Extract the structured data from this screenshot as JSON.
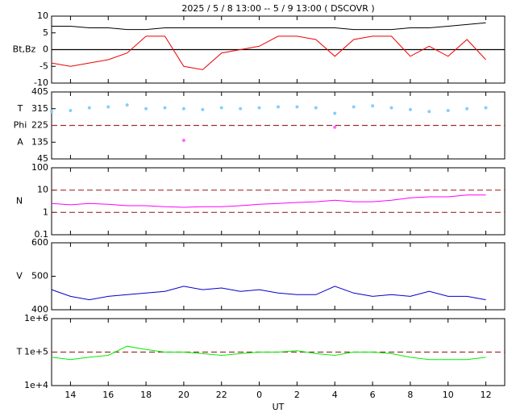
{
  "chart_data": [
    {
      "type": "line",
      "title": "2025 / 5 / 8 13:00 -- 5 / 9 13:00 ( DSCOVR )",
      "ylabel": "Bt,Bz",
      "x": [
        13,
        14,
        15,
        16,
        17,
        18,
        19,
        20,
        21,
        22,
        23,
        24,
        25,
        26,
        27,
        28,
        29,
        30,
        31,
        32,
        33,
        34,
        35,
        36
      ],
      "xlim": [
        13,
        37
      ],
      "ylim": [
        -10,
        10
      ],
      "yticks": [
        -10,
        -5,
        0,
        5,
        10
      ],
      "hlines": [
        0
      ],
      "hline_style": "solid",
      "hline_color": "#000000",
      "series": [
        {
          "color": "#000000",
          "values": [
            7,
            7,
            6.5,
            6.5,
            6,
            6,
            6.5,
            6.5,
            6.5,
            6.5,
            6.5,
            6.5,
            6.5,
            6.5,
            6.5,
            6.5,
            6,
            6,
            6,
            6.5,
            6.5,
            7,
            7.5,
            8
          ]
        },
        {
          "color": "#ee0000",
          "values": [
            -4,
            -5,
            -4,
            -3,
            -1,
            4,
            4,
            -5,
            -6,
            -1,
            0,
            1,
            4,
            4,
            3,
            -2,
            3,
            4,
            4,
            -2,
            1,
            -2,
            3,
            -3
          ]
        }
      ]
    },
    {
      "type": "scatter",
      "ylabels": [
        "T",
        "Phi",
        "A"
      ],
      "x": [
        13,
        14,
        15,
        16,
        17,
        18,
        19,
        20,
        21,
        22,
        23,
        24,
        25,
        26,
        27,
        28,
        29,
        30,
        31,
        32,
        33,
        34,
        35,
        36
      ],
      "xlim": [
        13,
        37
      ],
      "ylim": [
        45,
        405
      ],
      "yticks": [
        45,
        135,
        225,
        315,
        405
      ],
      "hlines": [
        225
      ],
      "hline_style": "dashed",
      "hline_color": "#a03030",
      "series": [
        {
          "color": "#87cefa",
          "values": [
            300,
            305,
            320,
            325,
            335,
            315,
            320,
            315,
            310,
            320,
            315,
            320,
            325,
            325,
            320,
            290,
            325,
            330,
            320,
            310,
            300,
            305,
            315,
            320
          ]
        },
        {
          "color": "#ff66ff",
          "values": [
            null,
            null,
            null,
            null,
            null,
            null,
            null,
            145,
            null,
            null,
            null,
            null,
            null,
            null,
            null,
            215,
            null,
            null,
            null,
            null,
            null,
            null,
            null,
            null
          ]
        }
      ]
    },
    {
      "type": "line",
      "ylabel": "N",
      "log": true,
      "x": [
        13,
        14,
        15,
        16,
        17,
        18,
        19,
        20,
        21,
        22,
        23,
        24,
        25,
        26,
        27,
        28,
        29,
        30,
        31,
        32,
        33,
        34,
        35,
        36
      ],
      "xlim": [
        13,
        37
      ],
      "ylim": [
        0.1,
        100
      ],
      "yticks": [
        0.1,
        1,
        10,
        100
      ],
      "hlines": [
        1,
        10
      ],
      "hline_style": "dashed",
      "hline_color": "#a03030",
      "series": [
        {
          "color": "#ff00ff",
          "values": [
            2.5,
            2.2,
            2.5,
            2.3,
            2,
            2,
            1.8,
            1.7,
            1.8,
            1.8,
            2,
            2.3,
            2.5,
            2.8,
            3,
            3.5,
            3,
            3,
            3.5,
            4.5,
            5,
            5,
            6,
            6
          ]
        }
      ]
    },
    {
      "type": "line",
      "ylabel": "V",
      "x": [
        13,
        14,
        15,
        16,
        17,
        18,
        19,
        20,
        21,
        22,
        23,
        24,
        25,
        26,
        27,
        28,
        29,
        30,
        31,
        32,
        33,
        34,
        35,
        36
      ],
      "xlim": [
        13,
        37
      ],
      "ylim": [
        400,
        600
      ],
      "yticks": [
        400,
        500,
        600
      ],
      "series": [
        {
          "color": "#0000cc",
          "values": [
            460,
            440,
            430,
            440,
            445,
            450,
            455,
            470,
            460,
            465,
            455,
            460,
            450,
            445,
            445,
            470,
            450,
            440,
            445,
            440,
            455,
            440,
            440,
            430
          ]
        }
      ]
    },
    {
      "type": "line",
      "ylabel": "T",
      "log": true,
      "xlabel": "UT",
      "x": [
        13,
        14,
        15,
        16,
        17,
        18,
        19,
        20,
        21,
        22,
        23,
        24,
        25,
        26,
        27,
        28,
        29,
        30,
        31,
        32,
        33,
        34,
        35,
        36
      ],
      "xlim": [
        13,
        37
      ],
      "xticks": [
        14,
        16,
        18,
        20,
        22,
        {
          "value": 24,
          "label": "0"
        },
        {
          "value": 26,
          "label": "2"
        },
        {
          "value": 28,
          "label": "4"
        },
        {
          "value": 30,
          "label": "6"
        },
        {
          "value": 32,
          "label": "8"
        },
        {
          "value": 34,
          "label": "10"
        },
        {
          "value": 36,
          "label": "12"
        }
      ],
      "ylim": [
        10000,
        1000000
      ],
      "yticks": [
        {
          "value": 10000,
          "label": "1e+4"
        },
        {
          "value": 100000,
          "label": "1e+5"
        },
        {
          "value": 1000000,
          "label": "1e+6"
        }
      ],
      "hlines": [
        100000
      ],
      "hline_style": "dashed",
      "hline_color": "#a03030",
      "series": [
        {
          "color": "#00ee00",
          "values": [
            70000,
            60000,
            70000,
            80000,
            150000,
            120000,
            100000,
            100000,
            90000,
            80000,
            90000,
            100000,
            100000,
            110000,
            90000,
            80000,
            100000,
            100000,
            90000,
            70000,
            60000,
            60000,
            60000,
            70000
          ]
        }
      ]
    }
  ]
}
